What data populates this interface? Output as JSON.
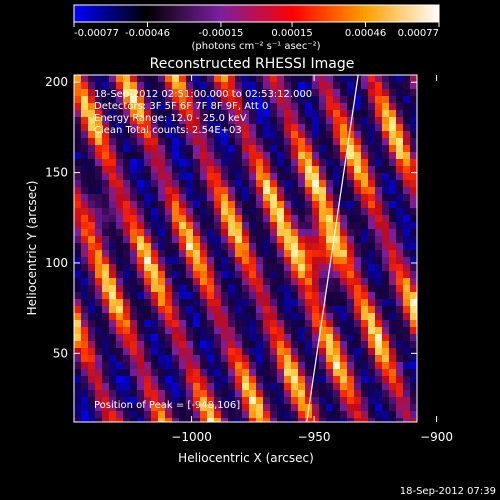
{
  "chart_data": {
    "type": "heatmap",
    "title": "Reconstructed RHESSI Image",
    "colorbar": {
      "ticks": [
        "-0.00077",
        "-0.00046",
        "-0.00015",
        "0.00015",
        "0.00046",
        "0.00077"
      ],
      "tick_values": [
        -0.00077,
        -0.00046,
        -0.00015,
        0.00015,
        0.00046,
        0.00077
      ],
      "range": [
        -0.00077,
        0.00077
      ],
      "unit_label": "(photons cm⁻² s⁻¹ asec⁻²)",
      "colors": [
        "#0000ff",
        "#000000",
        "#7a1fa0",
        "#ff0000",
        "#ffa000",
        "#ffffff"
      ]
    },
    "xlabel": "Heliocentric X (arcsec)",
    "ylabel": "Heliocentric Y (arcsec)",
    "xlim": [
      -1048,
      -908
    ],
    "ylim": [
      12,
      204
    ],
    "xticks": [
      {
        "value": -1000,
        "label": "−1000"
      },
      {
        "value": -950,
        "label": "−950"
      },
      {
        "value": -900,
        "label": "−900"
      }
    ],
    "yticks": [
      {
        "value": 50,
        "label": "50"
      },
      {
        "value": 100,
        "label": "100"
      },
      {
        "value": 150,
        "label": "150"
      },
      {
        "value": 200,
        "label": "200"
      }
    ],
    "info_lines": [
      "18-Sep-2012 02:51:00.000 to 02:53:12.000",
      "Detectors: 3F 5F 6F 7F 8F 9F, Att 0",
      "Energy Range: 12.0 - 25.0 keV",
      "Clean     Total counts: 2.54E+03"
    ],
    "peak_label": "Position of Peak = [-948,106]",
    "peak": {
      "x": -948,
      "y": 106
    },
    "limb_line": [
      {
        "x": -953,
        "y": 12
      },
      {
        "x": -932,
        "y": 204
      }
    ]
  },
  "footer": {
    "timestamp": "18-Sep-2012 07:39"
  }
}
